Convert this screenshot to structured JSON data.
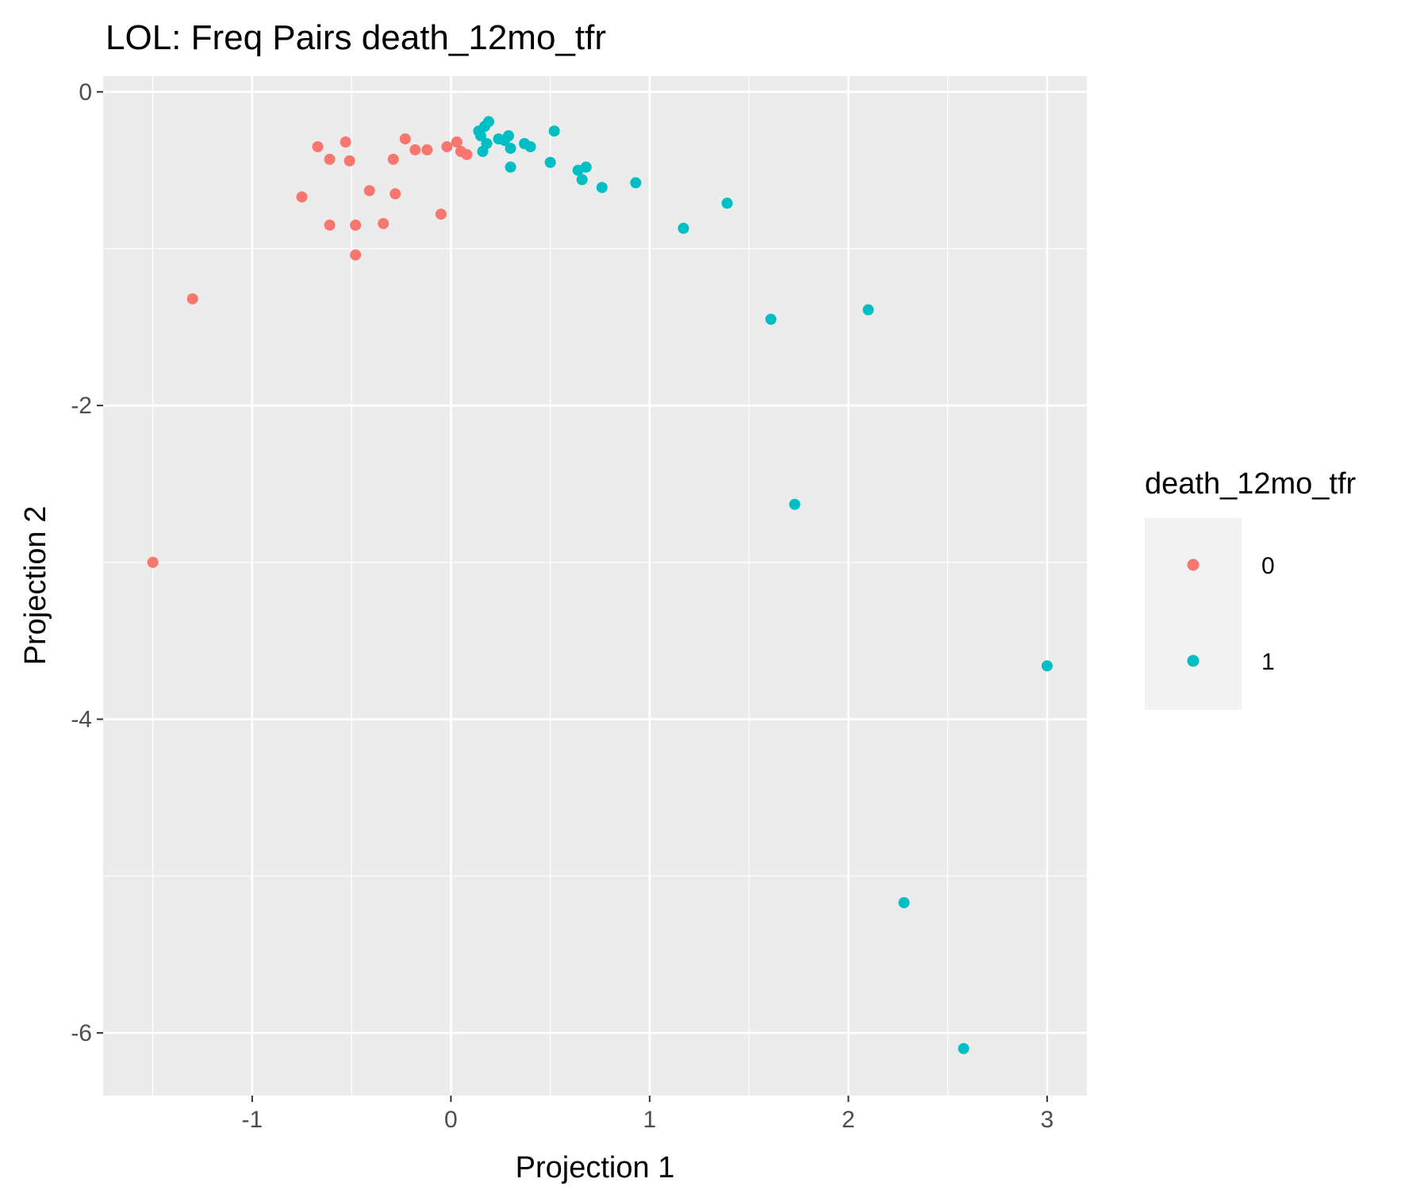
{
  "chart_data": {
    "type": "scatter",
    "title": "LOL: Freq Pairs death_12mo_tfr",
    "xlabel": "Projection 1",
    "ylabel": "Projection 2",
    "xlim": [
      -1.75,
      3.2
    ],
    "ylim": [
      -6.4,
      0.1
    ],
    "x_ticks": [
      {
        "value": -1,
        "label": "-1"
      },
      {
        "value": 0,
        "label": "0"
      },
      {
        "value": 1,
        "label": "1"
      },
      {
        "value": 2,
        "label": "2"
      },
      {
        "value": 3,
        "label": "3"
      }
    ],
    "y_ticks": [
      {
        "value": 0,
        "label": "0"
      },
      {
        "value": -2,
        "label": "-2"
      },
      {
        "value": -4,
        "label": "-4"
      },
      {
        "value": -6,
        "label": "-6"
      }
    ],
    "grid": true,
    "panel_background": "#ebebeb",
    "legend": {
      "title": "death_12mo_tfr",
      "position": "right"
    },
    "series": [
      {
        "name": "0",
        "color": "#f8766d",
        "points": [
          [
            -1.5,
            -3.0
          ],
          [
            -1.3,
            -1.32
          ],
          [
            -0.75,
            -0.67
          ],
          [
            -0.67,
            -0.35
          ],
          [
            -0.61,
            -0.43
          ],
          [
            -0.61,
            -0.85
          ],
          [
            -0.53,
            -0.32
          ],
          [
            -0.51,
            -0.44
          ],
          [
            -0.48,
            -0.85
          ],
          [
            -0.48,
            -1.04
          ],
          [
            -0.41,
            -0.63
          ],
          [
            -0.34,
            -0.84
          ],
          [
            -0.29,
            -0.43
          ],
          [
            -0.28,
            -0.65
          ],
          [
            -0.23,
            -0.3
          ],
          [
            -0.18,
            -0.37
          ],
          [
            -0.12,
            -0.37
          ],
          [
            -0.05,
            -0.78
          ],
          [
            -0.02,
            -0.35
          ],
          [
            0.03,
            -0.32
          ],
          [
            0.05,
            -0.38
          ],
          [
            0.08,
            -0.4
          ]
        ]
      },
      {
        "name": "1",
        "color": "#00bfc4",
        "points": [
          [
            0.14,
            -0.25
          ],
          [
            0.15,
            -0.28
          ],
          [
            0.16,
            -0.38
          ],
          [
            0.17,
            -0.22
          ],
          [
            0.18,
            -0.33
          ],
          [
            0.19,
            -0.19
          ],
          [
            0.24,
            -0.3
          ],
          [
            0.27,
            -0.31
          ],
          [
            0.29,
            -0.28
          ],
          [
            0.3,
            -0.36
          ],
          [
            0.3,
            -0.48
          ],
          [
            0.37,
            -0.33
          ],
          [
            0.4,
            -0.35
          ],
          [
            0.5,
            -0.45
          ],
          [
            0.52,
            -0.25
          ],
          [
            0.64,
            -0.5
          ],
          [
            0.66,
            -0.56
          ],
          [
            0.68,
            -0.48
          ],
          [
            0.76,
            -0.61
          ],
          [
            0.93,
            -0.58
          ],
          [
            1.17,
            -0.87
          ],
          [
            1.39,
            -0.71
          ],
          [
            1.61,
            -1.45
          ],
          [
            1.73,
            -2.63
          ],
          [
            2.1,
            -1.39
          ],
          [
            2.28,
            -5.17
          ],
          [
            2.58,
            -6.1
          ],
          [
            3.0,
            -3.66
          ]
        ]
      }
    ]
  }
}
